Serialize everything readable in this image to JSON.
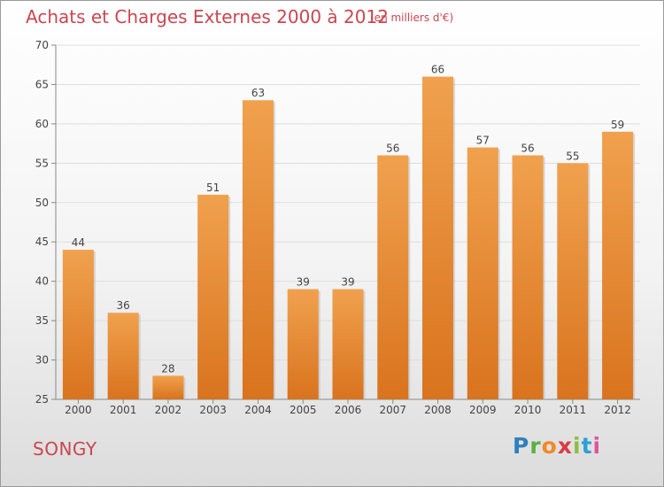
{
  "chart_data": {
    "type": "bar",
    "title": "Achats et Charges Externes 2000 à 2012",
    "subtitle": "(en milliers d'€)",
    "categories": [
      "2000",
      "2001",
      "2002",
      "2003",
      "2004",
      "2005",
      "2006",
      "2007",
      "2008",
      "2009",
      "2010",
      "2011",
      "2012"
    ],
    "values": [
      44,
      36,
      28,
      51,
      63,
      39,
      39,
      56,
      66,
      57,
      56,
      55,
      59
    ],
    "ylim": [
      25,
      70
    ],
    "yticks": [
      25,
      30,
      35,
      40,
      45,
      50,
      55,
      60,
      65,
      70
    ],
    "grid": true,
    "bar_color": "#f0a14e",
    "bar_color_dark": "#d9731e"
  },
  "footer": {
    "commune": "SONGY",
    "brand": "Proxiti"
  }
}
